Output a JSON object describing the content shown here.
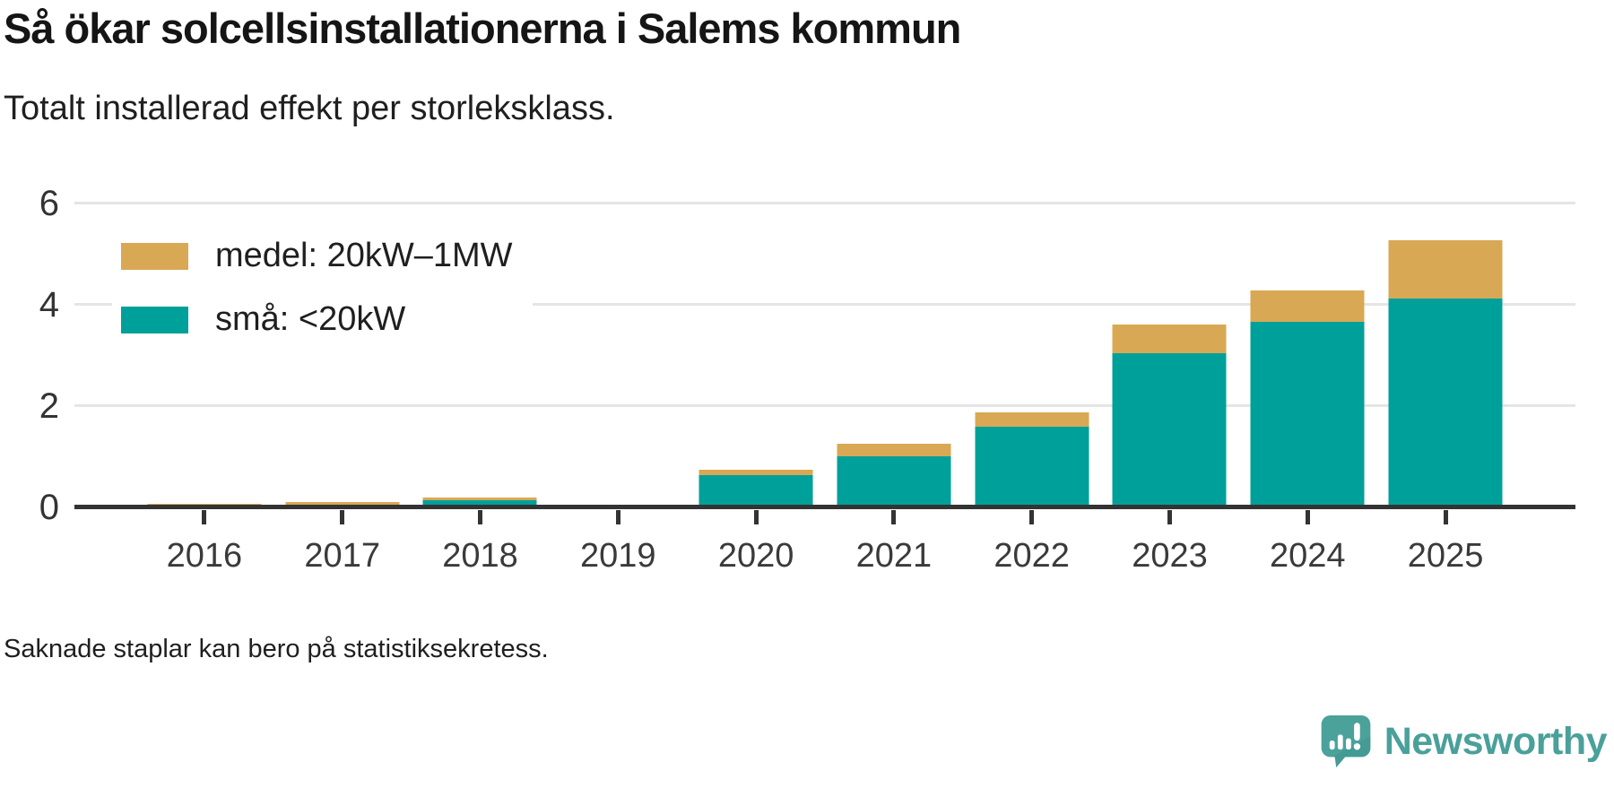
{
  "header": {
    "title": "Så ökar solcellsinstallationerna i Salems kommun",
    "subtitle": "Totalt installerad effekt per storleksklass."
  },
  "chart_data": {
    "type": "bar",
    "stacked": true,
    "categories": [
      "2016",
      "2017",
      "2018",
      "2019",
      "2020",
      "2021",
      "2022",
      "2023",
      "2024",
      "2025"
    ],
    "series": [
      {
        "name": "medel: 20kW–1MW",
        "color": "#d9a854",
        "values": [
          0.01,
          0.05,
          0.05,
          0,
          0.11,
          0.25,
          0.28,
          0.57,
          0.62,
          1.15
        ]
      },
      {
        "name": "små: <20kW",
        "color": "#00a09a",
        "values": [
          0.06,
          0.05,
          0.14,
          0,
          0.63,
          1.0,
          1.6,
          3.04,
          3.66,
          4.12
        ]
      }
    ],
    "ylim": [
      0,
      6.65
    ],
    "yticks": [
      0,
      2,
      4,
      6
    ],
    "grid": "horizontal",
    "legend_position": "top-left",
    "missing_bars": [
      "2019"
    ]
  },
  "footer": {
    "note": "Saknade staplar kan bero på statistiksekretess."
  },
  "branding": {
    "logo_text": "Newsworthy",
    "logo_color": "#4aa09a",
    "icon": "newsworthy-speech-bubble-chart-icon"
  }
}
